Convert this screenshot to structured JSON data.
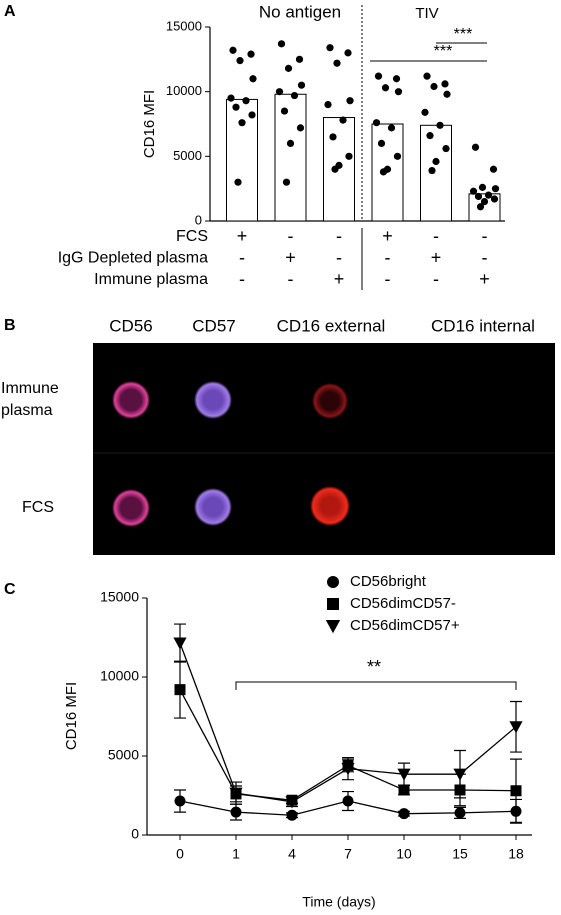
{
  "chart_data": [
    {
      "type": "bar",
      "label": "A",
      "ylabel": "CD16 MFI",
      "ylim": [
        0,
        15000
      ],
      "yticks": [
        0,
        5000,
        10000,
        15000
      ],
      "values": [
        9400,
        9800,
        8000,
        7500,
        7400,
        2100
      ],
      "points": [
        [
          13200,
          12900,
          12400,
          11000,
          9500,
          9300,
          8800,
          8200,
          7600,
          3000
        ],
        [
          13700,
          12500,
          11800,
          10500,
          10000,
          9700,
          8500,
          7200,
          6000,
          3000
        ],
        [
          13400,
          13000,
          12200,
          9300,
          9000,
          7800,
          6500,
          5000,
          4300,
          4000
        ],
        [
          11200,
          11000,
          10300,
          10000,
          7600,
          7200,
          6000,
          5000,
          4000,
          3800
        ],
        [
          11200,
          10600,
          10400,
          9800,
          8400,
          7400,
          6600,
          5600,
          4600,
          3900
        ],
        [
          5700,
          4000,
          2600,
          2500,
          2300,
          2000,
          1900,
          1700,
          1500,
          1100
        ]
      ],
      "color": "#ffffff",
      "point_color": "#000000",
      "annotations": [
        "No antigen",
        "TIV",
        "***",
        "***"
      ],
      "condition_rows": [
        {
          "label": "FCS",
          "signs": [
            "+",
            "-",
            "-",
            "+",
            "-",
            "-"
          ]
        },
        {
          "label": "IgG Depleted plasma",
          "signs": [
            "-",
            "+",
            "-",
            "-",
            "+",
            "-"
          ]
        },
        {
          "label": "Immune plasma",
          "signs": [
            "-",
            "-",
            "+",
            "-",
            "-",
            "+"
          ]
        }
      ]
    },
    {
      "type": "line",
      "label": "C",
      "ylabel": "CD16 MFI",
      "xlabel": "Time (days)",
      "categories": [
        "0",
        "1",
        "4",
        "7",
        "10",
        "15",
        "18"
      ],
      "ylim": [
        0,
        15000
      ],
      "yticks": [
        0,
        5000,
        10000,
        15000
      ],
      "annotations": [
        "**"
      ],
      "series": [
        {
          "name": "CD56bright",
          "color": "#000000",
          "marker": "circle",
          "values": [
            2150,
            1450,
            1250,
            2150,
            1350,
            1400,
            1500
          ],
          "errors": [
            700,
            500,
            150,
            600,
            150,
            350,
            750
          ]
        },
        {
          "name": "CD56dimCD57-",
          "color": "#000000",
          "marker": "square",
          "values": [
            9200,
            2600,
            2200,
            4400,
            2850,
            2850,
            2800
          ],
          "errors": [
            1800,
            500,
            200,
            400,
            300,
            1000,
            2000
          ]
        },
        {
          "name": "CD56dimCD57+",
          "color": "#000000",
          "marker": "triangle-down",
          "values": [
            12150,
            2650,
            2100,
            4200,
            3850,
            3850,
            6850
          ],
          "errors": [
            1200,
            700,
            300,
            700,
            700,
            1500,
            1600
          ]
        }
      ]
    }
  ],
  "panel_b": {
    "label": "B",
    "columns": [
      "CD56",
      "CD57",
      "CD16 external",
      "CD16 internal"
    ],
    "rows": [
      "Immune plasma",
      "FCS"
    ]
  }
}
